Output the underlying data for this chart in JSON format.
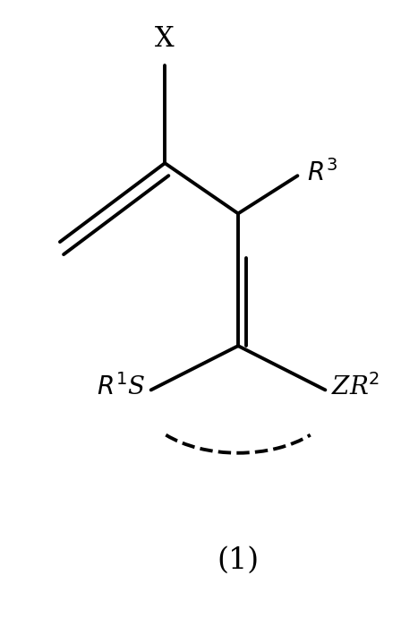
{
  "background_color": "#ffffff",
  "figsize": [
    4.48,
    7.09
  ],
  "dpi": 100,
  "bond_color": "#000000",
  "bond_lw": 2.8,
  "label_fontsize": 20,
  "title_fontsize": 24,
  "label_1": "(1)"
}
